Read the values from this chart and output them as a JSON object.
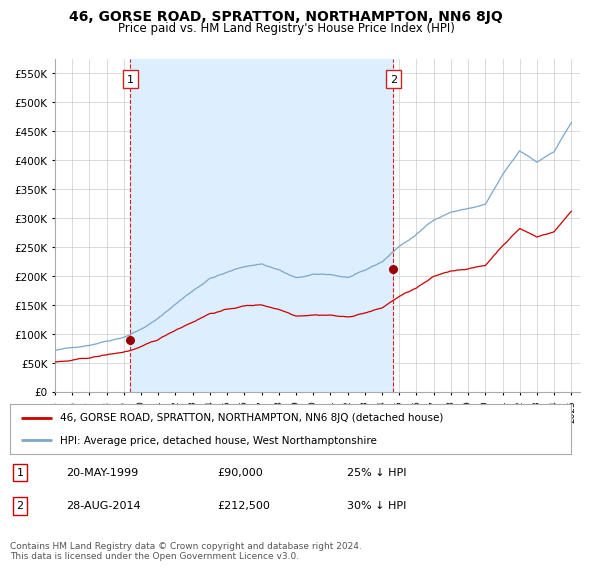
{
  "title": "46, GORSE ROAD, SPRATTON, NORTHAMPTON, NN6 8JQ",
  "subtitle": "Price paid vs. HM Land Registry's House Price Index (HPI)",
  "legend_line1": "46, GORSE ROAD, SPRATTON, NORTHAMPTON, NN6 8JQ (detached house)",
  "legend_line2": "HPI: Average price, detached house, West Northamptonshire",
  "transaction1_date": "20-MAY-1999",
  "transaction1_price": "£90,000",
  "transaction1_hpi": "25% ↓ HPI",
  "transaction2_date": "28-AUG-2014",
  "transaction2_price": "£212,500",
  "transaction2_hpi": "30% ↓ HPI",
  "footer": "Contains HM Land Registry data © Crown copyright and database right 2024.\nThis data is licensed under the Open Government Licence v3.0.",
  "ylim": [
    0,
    575000
  ],
  "yticks": [
    0,
    50000,
    100000,
    150000,
    200000,
    250000,
    300000,
    350000,
    400000,
    450000,
    500000,
    550000
  ],
  "ytick_labels": [
    "£0",
    "£50K",
    "£100K",
    "£150K",
    "£200K",
    "£250K",
    "£300K",
    "£350K",
    "£400K",
    "£450K",
    "£500K",
    "£550K"
  ],
  "red_line_color": "#cc0000",
  "blue_line_color": "#7ba7cc",
  "shade_color": "#ddeeff",
  "transaction_marker_color": "#990000",
  "vline_color": "#cc2222",
  "grid_color": "#cccccc",
  "background_color": "#ffffff",
  "transaction1_year": 1999.38,
  "transaction1_value": 90000,
  "transaction2_year": 2014.65,
  "transaction2_value": 212500,
  "xmin": 1995.0,
  "xmax": 2025.5
}
